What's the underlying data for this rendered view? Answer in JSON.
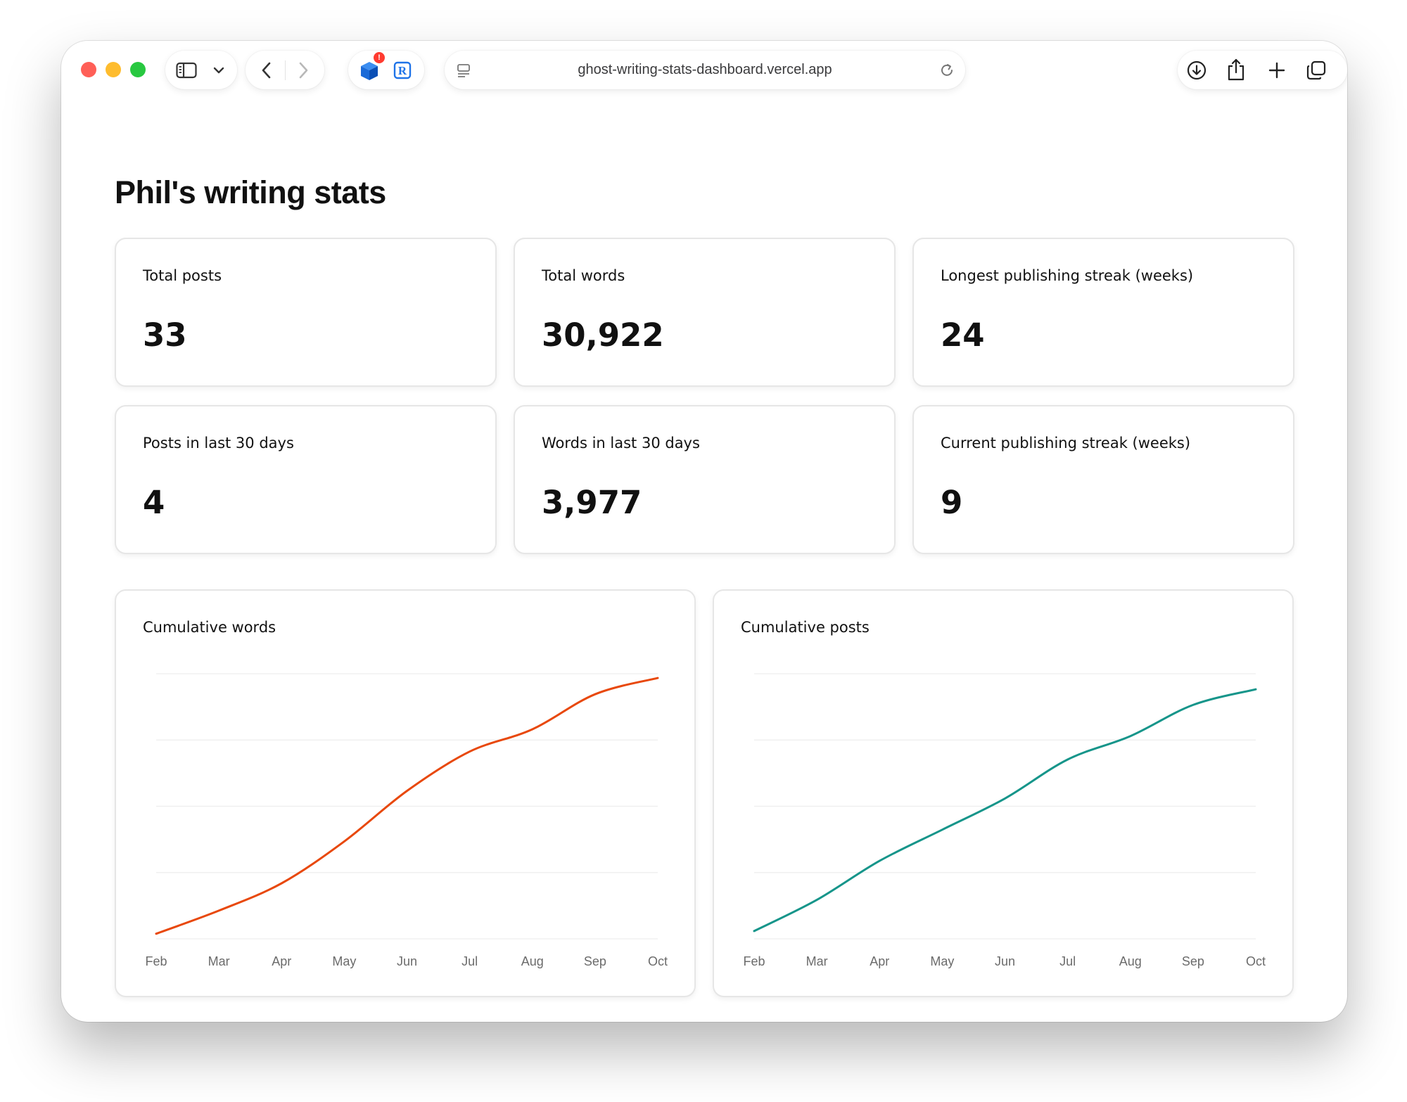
{
  "browser": {
    "url": "ghost-writing-stats-dashboard.vercel.app",
    "extension_badge": "!",
    "colors": {
      "close": "#ff5f57",
      "minimize": "#febc2e",
      "zoom": "#28c840"
    }
  },
  "page": {
    "title": "Phil's writing stats"
  },
  "stats": [
    {
      "label": "Total posts",
      "value": "33"
    },
    {
      "label": "Total words",
      "value": "30,922"
    },
    {
      "label": "Longest publishing streak (weeks)",
      "value": "24"
    },
    {
      "label": "Posts in last 30 days",
      "value": "4"
    },
    {
      "label": "Words in last 30 days",
      "value": "3,977"
    },
    {
      "label": "Current publishing streak (weeks)",
      "value": "9"
    }
  ],
  "chart_data": [
    {
      "type": "line",
      "title": "Cumulative words",
      "categories": [
        "Feb",
        "Mar",
        "Apr",
        "May",
        "Jun",
        "Jul",
        "Aug",
        "Sep",
        "Oct"
      ],
      "series": [
        {
          "values": [
            600,
            3300,
            6500,
            11400,
            17300,
            21900,
            24500,
            28600,
            30500
          ],
          "color": "#e8480c"
        }
      ],
      "ylim": [
        0,
        31000
      ],
      "grid": true,
      "y_tick_labels_visible": false
    },
    {
      "type": "line",
      "title": "Cumulative posts",
      "categories": [
        "Feb",
        "Mar",
        "Apr",
        "May",
        "Jun",
        "Jul",
        "Aug",
        "Sep",
        "Oct"
      ],
      "series": [
        {
          "values": [
            1,
            5,
            10,
            14,
            18,
            23,
            26,
            30,
            32
          ],
          "color": "#16958a"
        }
      ],
      "ylim": [
        0,
        34
      ],
      "grid": true,
      "y_tick_labels_visible": false
    }
  ]
}
